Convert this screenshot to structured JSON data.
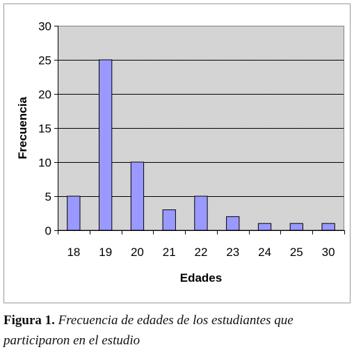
{
  "chart_data": {
    "type": "bar",
    "categories": [
      "18",
      "19",
      "20",
      "21",
      "22",
      "23",
      "24",
      "25",
      "30"
    ],
    "values": [
      5,
      25,
      10,
      3,
      5,
      2,
      1,
      1,
      1
    ],
    "xlabel": "Edades",
    "ylabel": "Frecuencia",
    "ylim": [
      0,
      30
    ],
    "yticks": [
      0,
      5,
      10,
      15,
      20,
      25,
      30
    ],
    "grid": true,
    "legend": "none",
    "colors": {
      "bar": "#9999ff",
      "bar_edge": "#000000",
      "plot_bg": "#c0c0c0",
      "grid": "#000000"
    }
  },
  "caption": {
    "label": "Figura 1.",
    "text": "Frecuencia de edades de los estudiantes que participaron en el estudio"
  }
}
